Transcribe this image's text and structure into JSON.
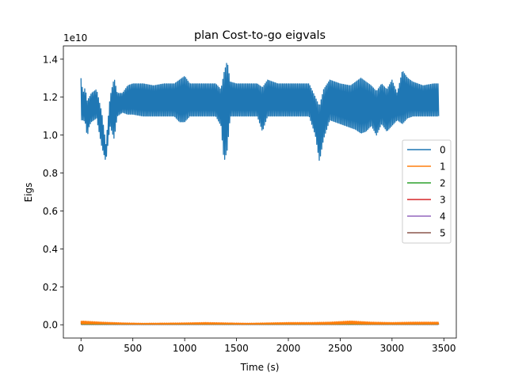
{
  "chart_data": {
    "type": "line",
    "title": "plan Cost-to-go eigvals",
    "xlabel": "Time (s)",
    "ylabel": "Eigs",
    "y_offset_label": "1e10",
    "xlim": [
      -170,
      3620
    ],
    "ylim": [
      -0.07,
      1.47
    ],
    "x_ticks": [
      0,
      500,
      1000,
      1500,
      2000,
      2500,
      3000,
      3500
    ],
    "x_tick_labels": [
      "0",
      "500",
      "1000",
      "1500",
      "2000",
      "2500",
      "3000",
      "3500"
    ],
    "y_ticks": [
      0.0,
      0.2,
      0.4,
      0.6,
      0.8,
      1.0,
      1.2,
      1.4
    ],
    "y_tick_labels": [
      "0.0",
      "0.2",
      "0.4",
      "0.6",
      "0.8",
      "1.0",
      "1.2",
      "1.4"
    ],
    "grid": false,
    "legend_position": "center-right",
    "series": [
      {
        "name": "0",
        "color": "#1f77b4",
        "render": "oscillating-band",
        "x": [
          0,
          20,
          40,
          60,
          80,
          100,
          150,
          200,
          240,
          280,
          320,
          350,
          400,
          450,
          500,
          600,
          700,
          800,
          900,
          950,
          1000,
          1050,
          1100,
          1200,
          1300,
          1350,
          1380,
          1410,
          1440,
          1500,
          1600,
          1700,
          1750,
          1800,
          1900,
          2000,
          2100,
          2200,
          2260,
          2300,
          2340,
          2400,
          2500,
          2600,
          2650,
          2700,
          2750,
          2800,
          2850,
          2900,
          2950,
          3000,
          3050,
          3100,
          3150,
          3200,
          3300,
          3400,
          3450
        ],
        "upper": [
          1.3,
          1.22,
          1.25,
          1.18,
          1.2,
          1.22,
          1.24,
          1.12,
          0.95,
          1.2,
          1.3,
          1.22,
          1.22,
          1.26,
          1.27,
          1.27,
          1.26,
          1.27,
          1.27,
          1.29,
          1.31,
          1.27,
          1.27,
          1.27,
          1.27,
          1.24,
          1.33,
          1.39,
          1.28,
          1.27,
          1.27,
          1.27,
          1.25,
          1.29,
          1.27,
          1.27,
          1.27,
          1.27,
          1.2,
          1.15,
          1.24,
          1.29,
          1.27,
          1.26,
          1.28,
          1.3,
          1.28,
          1.26,
          1.23,
          1.27,
          1.24,
          1.29,
          1.22,
          1.34,
          1.3,
          1.28,
          1.26,
          1.27,
          1.27
        ],
        "lower": [
          1.08,
          1.08,
          1.07,
          0.99,
          1.05,
          1.07,
          1.09,
          0.94,
          0.86,
          1.05,
          0.98,
          1.1,
          1.12,
          1.11,
          1.11,
          1.1,
          1.1,
          1.1,
          1.1,
          1.07,
          1.07,
          1.1,
          1.1,
          1.1,
          1.1,
          1.05,
          0.86,
          0.92,
          1.1,
          1.1,
          1.1,
          1.1,
          1.02,
          1.1,
          1.1,
          1.1,
          1.1,
          1.1,
          1.0,
          0.86,
          0.98,
          1.08,
          1.06,
          1.04,
          1.03,
          1.01,
          1.02,
          1.05,
          1.0,
          1.06,
          1.02,
          1.05,
          1.08,
          1.06,
          1.09,
          1.1,
          1.1,
          1.1,
          1.1
        ]
      },
      {
        "name": "1",
        "color": "#ff7f0e",
        "render": "oscillating-band",
        "x": [
          0,
          200,
          400,
          600,
          800,
          1000,
          1200,
          1400,
          1600,
          1800,
          2000,
          2200,
          2400,
          2600,
          2800,
          3000,
          3200,
          3450
        ],
        "upper": [
          0.02,
          0.014,
          0.01,
          0.008,
          0.009,
          0.01,
          0.012,
          0.01,
          0.008,
          0.01,
          0.012,
          0.012,
          0.014,
          0.02,
          0.014,
          0.012,
          0.014,
          0.014
        ],
        "lower": [
          0.004,
          0.004,
          0.003,
          0.003,
          0.003,
          0.003,
          0.003,
          0.003,
          0.003,
          0.003,
          0.003,
          0.003,
          0.003,
          0.004,
          0.003,
          0.003,
          0.003,
          0.003
        ]
      },
      {
        "name": "2",
        "color": "#2ca02c",
        "render": "oscillating-band",
        "x": [
          0,
          500,
          1000,
          1500,
          2000,
          2500,
          3000,
          3450
        ],
        "upper": [
          0.008,
          0.006,
          0.006,
          0.006,
          0.006,
          0.007,
          0.006,
          0.006
        ],
        "lower": [
          0.002,
          0.002,
          0.002,
          0.002,
          0.002,
          0.002,
          0.002,
          0.002
        ]
      },
      {
        "name": "3",
        "color": "#d62728",
        "render": "oscillating-band",
        "x": [
          0,
          300,
          600,
          900,
          1200,
          1500,
          1800,
          2100,
          2400,
          2700,
          3000,
          3450
        ],
        "upper": [
          0.012,
          0.01,
          0.006,
          0.006,
          0.01,
          0.008,
          0.006,
          0.01,
          0.008,
          0.01,
          0.008,
          0.008
        ],
        "lower": [
          0.003,
          0.003,
          0.002,
          0.002,
          0.003,
          0.002,
          0.002,
          0.003,
          0.002,
          0.003,
          0.002,
          0.002
        ]
      },
      {
        "name": "4",
        "color": "#9467bd",
        "render": "oscillating-band",
        "x": [
          0,
          1000,
          2000,
          3000,
          3450
        ],
        "upper": [
          0.004,
          0.004,
          0.004,
          0.004,
          0.004
        ],
        "lower": [
          0.001,
          0.001,
          0.001,
          0.001,
          0.001
        ]
      },
      {
        "name": "5",
        "color": "#8c564b",
        "render": "oscillating-band",
        "x": [
          0,
          1000,
          2000,
          3000,
          3450
        ],
        "upper": [
          0.005,
          0.005,
          0.005,
          0.005,
          0.005
        ],
        "lower": [
          0.001,
          0.001,
          0.001,
          0.001,
          0.001
        ]
      }
    ]
  }
}
